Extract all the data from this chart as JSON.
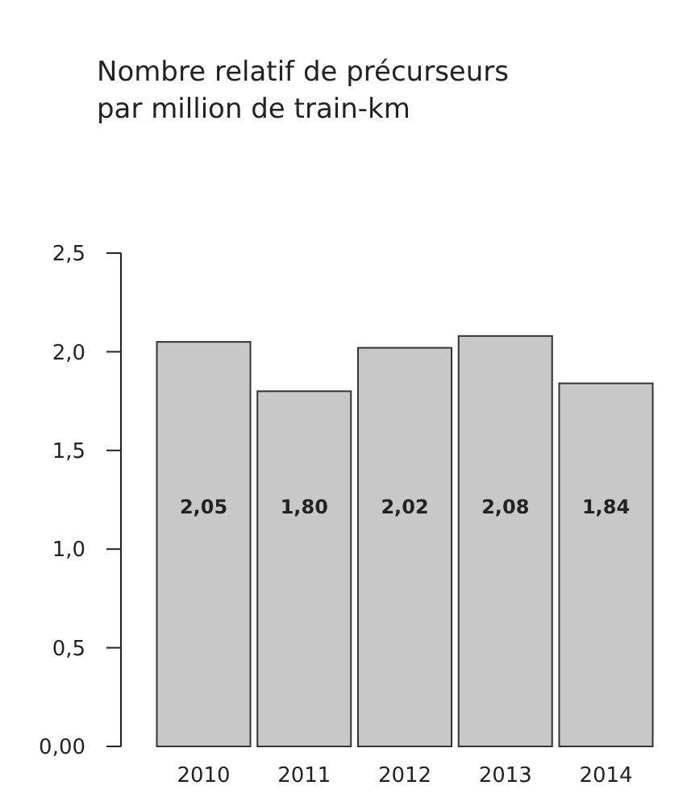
{
  "chart_data": {
    "type": "bar",
    "title": "Nombre relatif de précurseurs\npar million de train-km",
    "categories": [
      "2010",
      "2011",
      "2012",
      "2013",
      "2014"
    ],
    "values": [
      2.05,
      1.8,
      2.02,
      2.08,
      1.84
    ],
    "color": "#c8c8c8",
    "value_labels": [
      "2,05",
      "1,80",
      "2,02",
      "2,08",
      "1,84"
    ],
    "ylim": [
      0,
      2.5
    ],
    "yticks": [
      {
        "value": 0,
        "label": "0,00"
      },
      {
        "value": 0.5,
        "label": "0,5"
      },
      {
        "value": 1,
        "label": "1,0"
      },
      {
        "value": 1.5,
        "label": "1,5"
      },
      {
        "value": 2,
        "label": "2,0"
      },
      {
        "value": 2.5,
        "label": "2,5"
      }
    ],
    "grid": false
  }
}
